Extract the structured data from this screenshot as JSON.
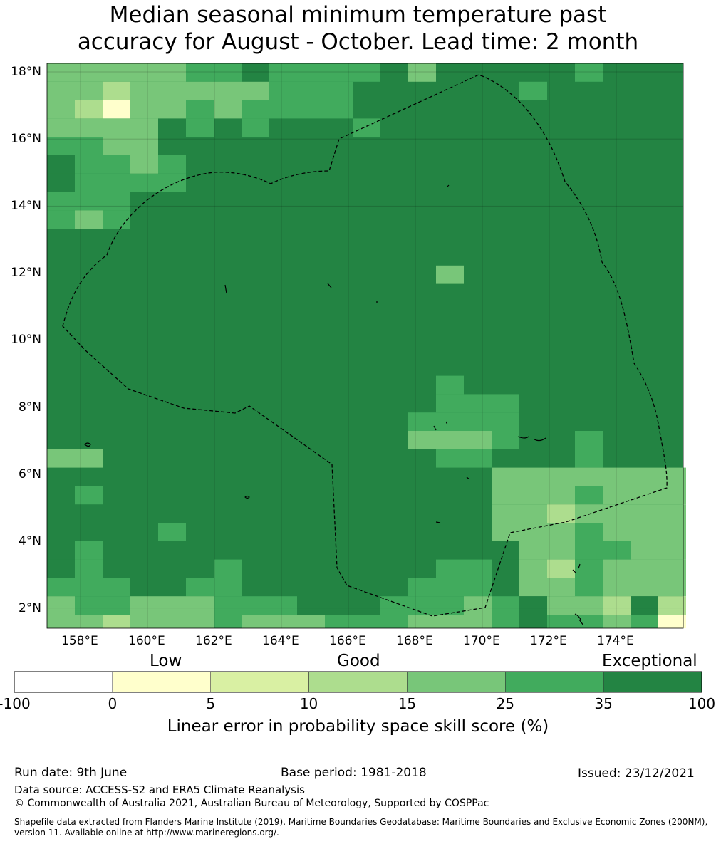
{
  "title": {
    "line1": "Median seasonal minimum temperature past",
    "line2": "accuracy for August - October. Lead time: 2 month"
  },
  "map": {
    "lat_labels": [
      "18°N",
      "16°N",
      "14°N",
      "12°N",
      "10°N",
      "8°N",
      "6°N",
      "4°N",
      "2°N"
    ],
    "lon_labels": [
      "158°E",
      "160°E",
      "162°E",
      "164°E",
      "166°E",
      "168°E",
      "170°E",
      "172°E",
      "174°E"
    ],
    "extent": {
      "lon_min": 157.0,
      "lon_max": 176.0,
      "lat_min": 1.4,
      "lat_max": 18.25
    },
    "grid_step_deg": 0.83,
    "legend_levels": [
      "-100 to 0",
      "0 to 5",
      "5 to 10",
      "10 to 15",
      "15 to 25",
      "25 to 35",
      "35 to 100"
    ]
  },
  "colorbar": {
    "categories": [
      "Low",
      "Good",
      "Exceptional"
    ],
    "ticks": [
      "-100",
      "0",
      "5",
      "10",
      "15",
      "25",
      "35",
      "100"
    ],
    "colors": [
      "#ffffff",
      "#ffffcc",
      "#d9f0a3",
      "#addd8e",
      "#78c679",
      "#41ab5d",
      "#238443"
    ],
    "label": "Linear error in probability space skill score (%)"
  },
  "footer": {
    "run_date": "Run date: 9th June",
    "base_period": "Base period: 1981-2018",
    "issued": "Issued: 23/12/2021",
    "data_source": "Data source: ACCESS-S2 and ERA5 Climate Reanalysis",
    "copyright": "© Commonwealth of Australia 2021, Australian Bureau of Meteorology, Supported by COSPPac",
    "shapefile_line1": "Shapefile data extracted from Flanders Marine Institute (2019), Maritime Boundaries Geodatabase: Maritime Boundaries and Exclusive Economic Zones (200NM),",
    "shapefile_line2": "version 11. Available online at http://www.marineregions.org/."
  }
}
